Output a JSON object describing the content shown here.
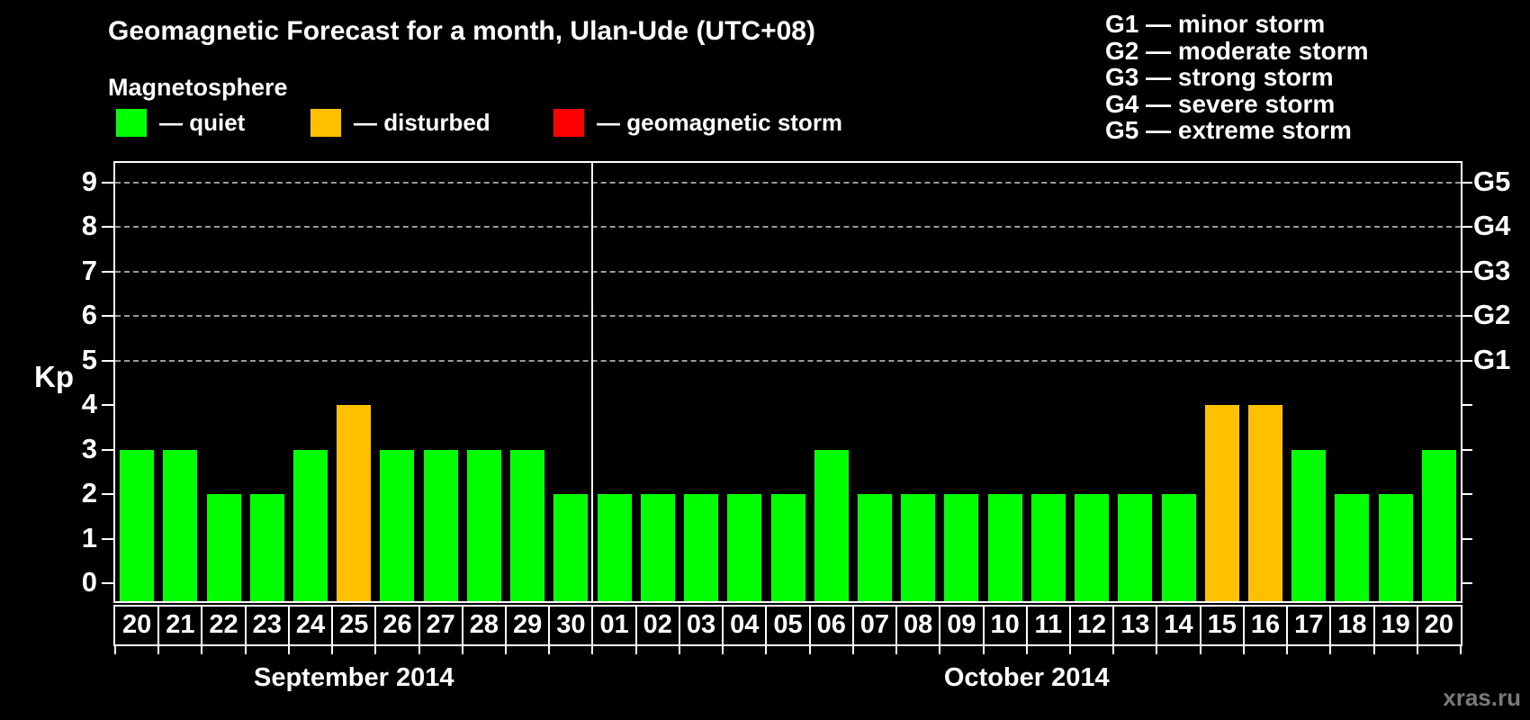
{
  "title": "Geomagnetic Forecast for a month, Ulan-Ude (UTC+08)",
  "legend": {
    "heading": "Magnetosphere",
    "items": [
      {
        "name": "quiet",
        "label": "— quiet",
        "color": "#00ff00"
      },
      {
        "name": "disturbed",
        "label": "— disturbed",
        "color": "#ffc000"
      },
      {
        "name": "storm",
        "label": "— geomagnetic storm",
        "color": "#ff0000"
      }
    ]
  },
  "g_legend": [
    "G1 — minor storm",
    "G2 — moderate storm",
    "G3 — strong storm",
    "G4 — severe storm",
    "G5 — extreme storm"
  ],
  "watermark": "xras.ru",
  "chart_data": {
    "type": "bar",
    "title": "Geomagnetic Forecast for a month, Ulan-Ude (UTC+08)",
    "xlabel": "",
    "ylabel": "Kp",
    "ylim": [
      0,
      9
    ],
    "yticks": [
      0,
      1,
      2,
      3,
      4,
      5,
      6,
      7,
      8,
      9
    ],
    "gridlines_kp": [
      5,
      6,
      7,
      8,
      9
    ],
    "grid_style": "dashed horizontal, only at G-storm levels 5-9",
    "legend_position": "top",
    "right_axis": [
      {
        "label": "G1",
        "kp": 5
      },
      {
        "label": "G2",
        "kp": 6
      },
      {
        "label": "G3",
        "kp": 7
      },
      {
        "label": "G4",
        "kp": 8
      },
      {
        "label": "G5",
        "kp": 9
      }
    ],
    "status_colors": {
      "quiet": "#00ff00",
      "disturbed": "#ffc000",
      "storm": "#ff0000"
    },
    "months": [
      {
        "name": "September 2014",
        "days": [
          "20",
          "21",
          "22",
          "23",
          "24",
          "25",
          "26",
          "27",
          "28",
          "29",
          "30"
        ],
        "values": [
          3,
          3,
          2,
          2,
          3,
          4,
          3,
          3,
          3,
          3,
          2
        ],
        "status": [
          "quiet",
          "quiet",
          "quiet",
          "quiet",
          "quiet",
          "disturbed",
          "quiet",
          "quiet",
          "quiet",
          "quiet",
          "quiet"
        ]
      },
      {
        "name": "October 2014",
        "days": [
          "01",
          "02",
          "03",
          "04",
          "05",
          "06",
          "07",
          "08",
          "09",
          "10",
          "11",
          "12",
          "13",
          "14",
          "15",
          "16",
          "17",
          "18",
          "19",
          "20"
        ],
        "values": [
          2,
          2,
          2,
          2,
          2,
          3,
          2,
          2,
          2,
          2,
          2,
          2,
          2,
          2,
          4,
          4,
          3,
          2,
          2,
          3
        ],
        "status": [
          "quiet",
          "quiet",
          "quiet",
          "quiet",
          "quiet",
          "quiet",
          "quiet",
          "quiet",
          "quiet",
          "quiet",
          "quiet",
          "quiet",
          "quiet",
          "quiet",
          "disturbed",
          "disturbed",
          "quiet",
          "quiet",
          "quiet",
          "quiet"
        ]
      }
    ]
  }
}
